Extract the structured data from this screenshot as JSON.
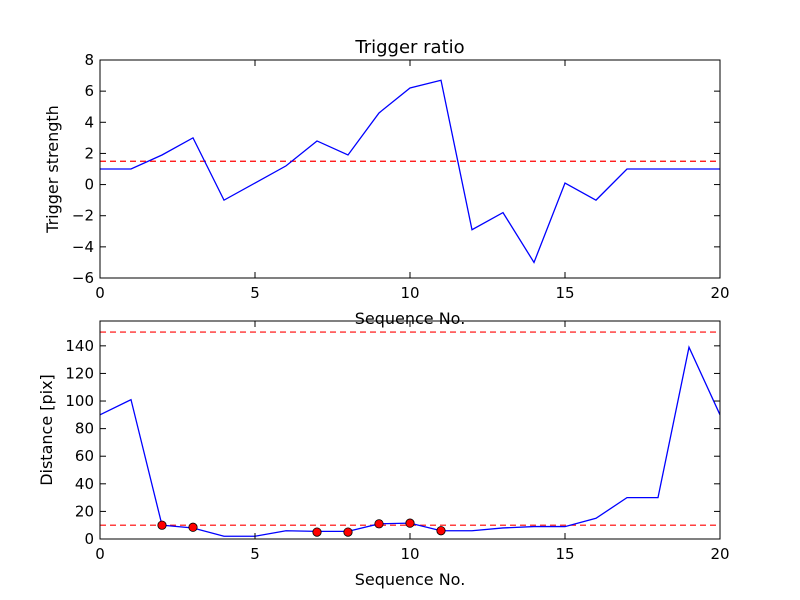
{
  "colors": {
    "line": "#0000ff",
    "threshold": "#ff0000",
    "marker_fill": "#ff0000",
    "marker_edge": "#000000",
    "axes": "#000000",
    "background": "#ffffff"
  },
  "chart_data": [
    {
      "type": "line",
      "title": "Trigger ratio",
      "xlabel": "Sequence No.",
      "ylabel": "Trigger strength",
      "xlim": [
        0,
        20
      ],
      "ylim": [
        -6,
        8
      ],
      "xticks": [
        0,
        5,
        10,
        15,
        20
      ],
      "yticks": [
        -6,
        -4,
        -2,
        0,
        2,
        4,
        6,
        8
      ],
      "grid": false,
      "series": [
        {
          "x": [
            0,
            1,
            2,
            3,
            4,
            5,
            6,
            7,
            8,
            9,
            10,
            11,
            12,
            13,
            14,
            15,
            16,
            17,
            18,
            19,
            20
          ],
          "values": [
            1.0,
            1.0,
            1.9,
            3.0,
            -1.0,
            0.1,
            1.2,
            2.8,
            1.9,
            4.6,
            6.2,
            6.7,
            -2.9,
            -1.8,
            -5.0,
            0.1,
            -1.0,
            1.0,
            1.0,
            1.0,
            1.0
          ]
        }
      ],
      "hlines": [
        1.5
      ]
    },
    {
      "type": "line",
      "title": "",
      "xlabel": "Sequence No.",
      "ylabel": "Distance [pix]",
      "xlim": [
        0,
        20
      ],
      "ylim": [
        0,
        158
      ],
      "xticks": [
        0,
        5,
        10,
        15,
        20
      ],
      "yticks": [
        0,
        20,
        40,
        60,
        80,
        100,
        120,
        140
      ],
      "grid": false,
      "series": [
        {
          "x": [
            0,
            1,
            2,
            3,
            4,
            5,
            6,
            7,
            8,
            9,
            10,
            11,
            12,
            13,
            14,
            15,
            16,
            17,
            18,
            19,
            20
          ],
          "values": [
            90,
            101,
            10,
            8,
            2,
            2,
            6,
            5.5,
            5.5,
            11,
            11.5,
            6,
            6,
            8,
            9,
            9,
            15,
            30,
            30,
            139,
            90
          ]
        }
      ],
      "markers": {
        "x": [
          2,
          3,
          7,
          8,
          9,
          10,
          11
        ],
        "values": [
          10,
          8.5,
          5,
          5,
          11,
          11.5,
          6
        ]
      },
      "hlines": [
        10,
        150
      ]
    }
  ]
}
